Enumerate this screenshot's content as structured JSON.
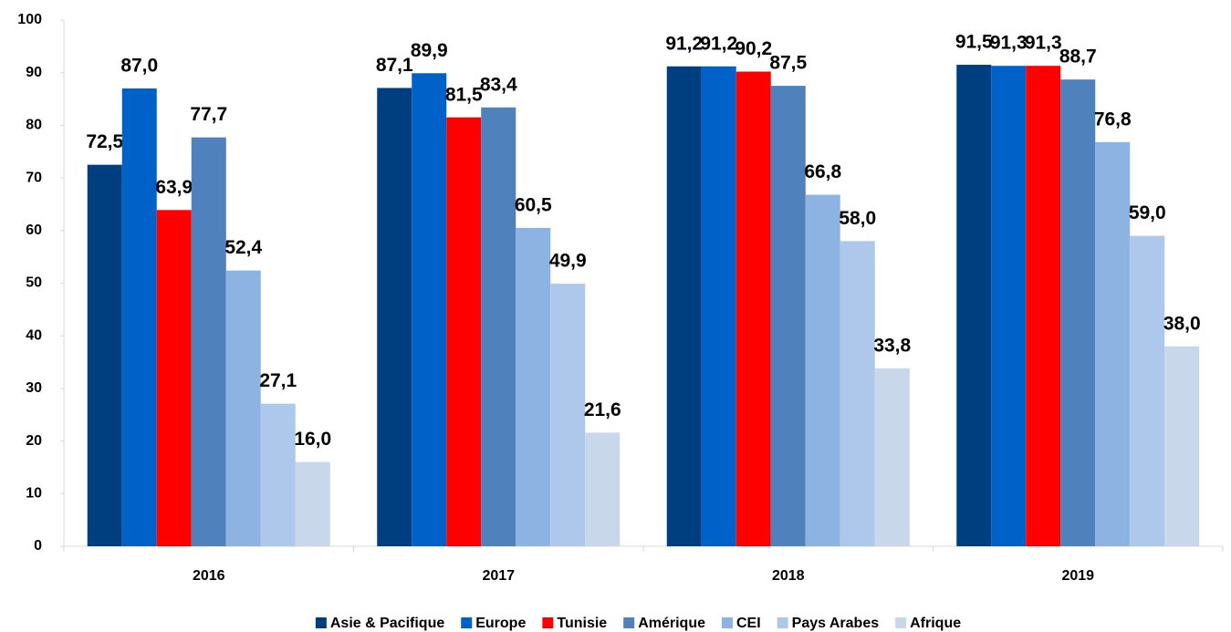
{
  "chart_data": {
    "type": "bar",
    "categories": [
      "2016",
      "2017",
      "2018",
      "2019"
    ],
    "series": [
      {
        "name": "Asie & Pacifique",
        "color": "#003f7f",
        "values": [
          72.5,
          87.1,
          91.2,
          91.5
        ],
        "value_labels": [
          "72,5",
          "87,1",
          "91,2",
          "91,5"
        ]
      },
      {
        "name": "Europe",
        "color": "#0062c9",
        "values": [
          87.0,
          89.9,
          91.2,
          91.3
        ],
        "value_labels": [
          "87,0",
          "89,9",
          "91,2",
          "91,3"
        ]
      },
      {
        "name": "Tunisie",
        "color": "#ff0000",
        "values": [
          63.9,
          81.5,
          90.2,
          91.3
        ],
        "value_labels": [
          "63,9",
          "81,5",
          "90,2",
          "91,3"
        ]
      },
      {
        "name": "Amérique",
        "color": "#4f81bd",
        "values": [
          77.7,
          83.4,
          87.5,
          88.7
        ],
        "value_labels": [
          "77,7",
          "83,4",
          "87,5",
          "88,7"
        ]
      },
      {
        "name": "CEI",
        "color": "#8cb3e2",
        "values": [
          52.4,
          60.5,
          66.8,
          76.8
        ],
        "value_labels": [
          "52,4",
          "60,5",
          "66,8",
          "76,8"
        ]
      },
      {
        "name": "Pays Arabes",
        "color": "#aec8ec",
        "values": [
          27.1,
          49.9,
          58.0,
          59.0
        ],
        "value_labels": [
          "27,1",
          "49,9",
          "58,0",
          "59,0"
        ]
      },
      {
        "name": "Afrique",
        "color": "#c9d7ea",
        "values": [
          16.0,
          21.6,
          33.8,
          38.0
        ],
        "value_labels": [
          "16,0",
          "21,6",
          "33,8",
          "38,0"
        ]
      }
    ],
    "ylim": [
      0,
      100
    ],
    "yticks": [
      0,
      10,
      20,
      30,
      40,
      50,
      60,
      70,
      80,
      90,
      100
    ],
    "grid": false,
    "legend": "bottom"
  }
}
